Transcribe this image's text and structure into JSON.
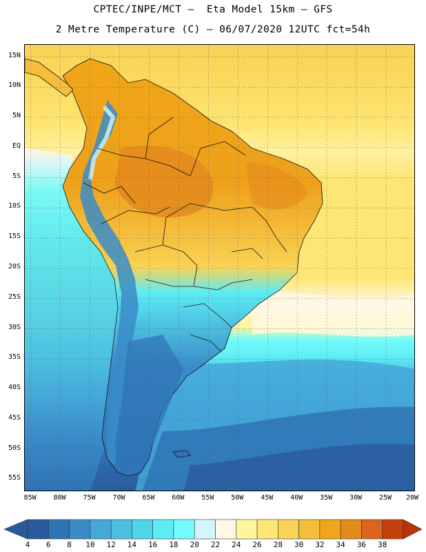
{
  "title_line1": "CPTEC/INPE/MCT –  Eta Model 15km – GFS",
  "title_line2": "2 Metre Temperature (C) – 06/07/2020 12UTC fct=54h",
  "map": {
    "region": "South America",
    "lat_range": [
      -57,
      17
    ],
    "lon_range": [
      -86,
      -20
    ],
    "lat_ticks": [
      {
        "value": 15,
        "label": "15N"
      },
      {
        "value": 10,
        "label": "10N"
      },
      {
        "value": 5,
        "label": "5N"
      },
      {
        "value": 0,
        "label": "EQ"
      },
      {
        "value": -5,
        "label": "5S"
      },
      {
        "value": -10,
        "label": "10S"
      },
      {
        "value": -15,
        "label": "15S"
      },
      {
        "value": -20,
        "label": "20S"
      },
      {
        "value": -25,
        "label": "25S"
      },
      {
        "value": -30,
        "label": "30S"
      },
      {
        "value": -35,
        "label": "35S"
      },
      {
        "value": -40,
        "label": "40S"
      },
      {
        "value": -45,
        "label": "45S"
      },
      {
        "value": -50,
        "label": "50S"
      },
      {
        "value": -55,
        "label": "55S"
      }
    ],
    "lon_ticks": [
      {
        "value": -85,
        "label": "85W"
      },
      {
        "value": -80,
        "label": "80W"
      },
      {
        "value": -75,
        "label": "75W"
      },
      {
        "value": -70,
        "label": "70W"
      },
      {
        "value": -65,
        "label": "65W"
      },
      {
        "value": -60,
        "label": "60W"
      },
      {
        "value": -55,
        "label": "55W"
      },
      {
        "value": -50,
        "label": "50W"
      },
      {
        "value": -45,
        "label": "45W"
      },
      {
        "value": -40,
        "label": "40W"
      },
      {
        "value": -35,
        "label": "35W"
      },
      {
        "value": -30,
        "label": "30W"
      },
      {
        "value": -25,
        "label": "25W"
      },
      {
        "value": -20,
        "label": "20W"
      }
    ]
  },
  "colorbar": {
    "labels": [
      "4",
      "6",
      "8",
      "10",
      "12",
      "14",
      "16",
      "18",
      "20",
      "22",
      "24",
      "26",
      "28",
      "30",
      "32",
      "34",
      "36",
      "38"
    ],
    "colors": [
      "#2a5a9c",
      "#2f74b5",
      "#3a8cc8",
      "#44a8d8",
      "#4cc0e0",
      "#50d4e8",
      "#5cecf4",
      "#74fbfc",
      "#d2f6fc",
      "#fff8e4",
      "#fff59a",
      "#fde673",
      "#f9d356",
      "#f4be3c",
      "#f0a618",
      "#e38a1d",
      "#dc641c",
      "#c4400c",
      "#b8320c"
    ]
  }
}
